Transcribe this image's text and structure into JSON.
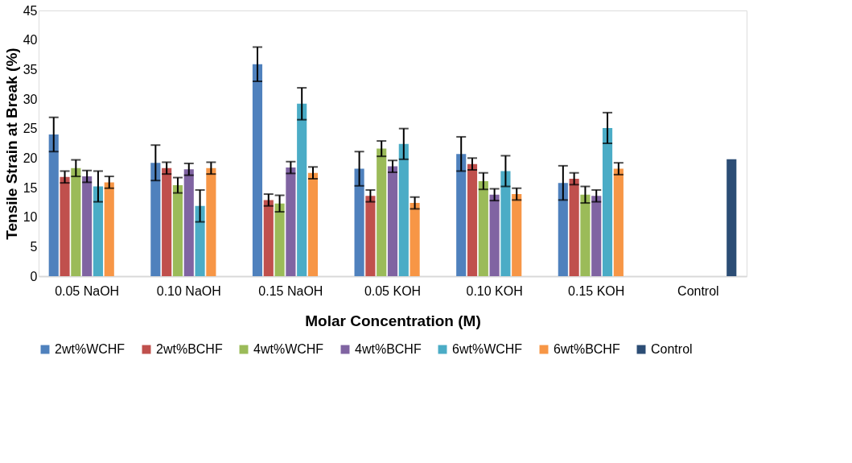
{
  "chart_data": {
    "type": "bar",
    "xlabel": "Molar Concentration (M)",
    "ylabel": "Tensile Strain at Break (%)",
    "categories": [
      "0.05 NaOH",
      "0.10 NaOH",
      "0.15 NaOH",
      "0.05 KOH",
      "0.10 KOH",
      "0.15 KOH",
      "Control"
    ],
    "ylim": [
      0,
      45
    ],
    "yticks": [
      0,
      5,
      10,
      15,
      20,
      25,
      30,
      35,
      40,
      45
    ],
    "grid": false,
    "legend": "bottom",
    "series": [
      {
        "name": "2wt%WCHF",
        "color": "#4f81bd",
        "values": [
          24.0,
          19.2,
          35.9,
          18.2,
          20.7,
          15.8,
          null
        ],
        "errors": [
          2.9,
          3.0,
          2.9,
          2.9,
          2.9,
          2.9,
          null
        ]
      },
      {
        "name": "2wt%BCHF",
        "color": "#c0504d",
        "values": [
          16.8,
          18.3,
          12.9,
          13.6,
          19.0,
          16.5,
          null
        ],
        "errors": [
          1.0,
          1.0,
          1.0,
          1.0,
          1.0,
          1.0,
          null
        ]
      },
      {
        "name": "4wt%WCHF",
        "color": "#9bbb59",
        "values": [
          18.3,
          15.4,
          12.3,
          21.6,
          16.1,
          13.8,
          null
        ],
        "errors": [
          1.4,
          1.3,
          1.4,
          1.3,
          1.4,
          1.4,
          null
        ]
      },
      {
        "name": "4wt%BCHF",
        "color": "#8064a2",
        "values": [
          16.9,
          18.1,
          18.4,
          18.6,
          13.8,
          13.6,
          null
        ],
        "errors": [
          1.0,
          1.0,
          1.0,
          1.0,
          1.0,
          1.0,
          null
        ]
      },
      {
        "name": "6wt%WCHF",
        "color": "#4bacc6",
        "values": [
          15.2,
          11.9,
          29.2,
          22.4,
          17.8,
          25.1,
          null
        ],
        "errors": [
          2.6,
          2.7,
          2.7,
          2.6,
          2.6,
          2.6,
          null
        ]
      },
      {
        "name": "6wt%BCHF",
        "color": "#f79646",
        "values": [
          15.9,
          18.3,
          17.5,
          12.4,
          13.9,
          18.2,
          null
        ],
        "errors": [
          1.0,
          1.0,
          1.0,
          1.0,
          1.0,
          1.0,
          null
        ]
      },
      {
        "name": "Control",
        "color": "#2c4d75",
        "values": [
          null,
          null,
          null,
          null,
          null,
          null,
          19.8
        ],
        "errors": [
          null,
          null,
          null,
          null,
          null,
          null,
          null
        ]
      }
    ]
  }
}
